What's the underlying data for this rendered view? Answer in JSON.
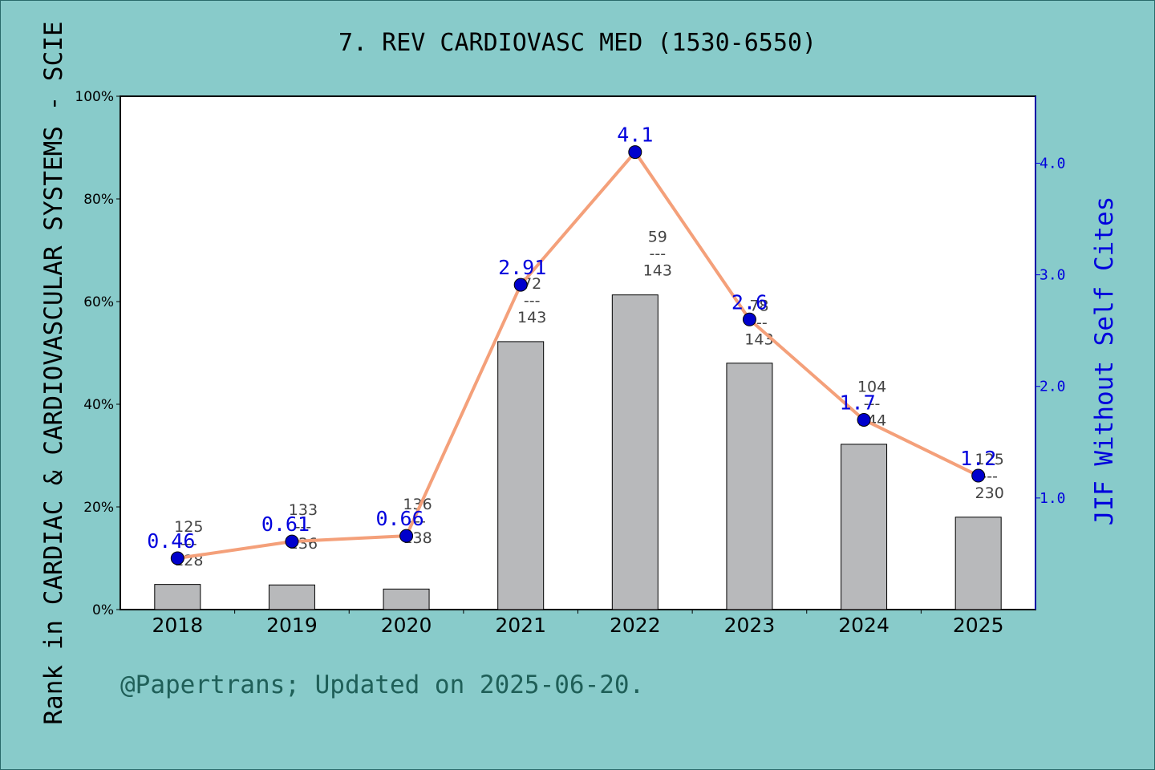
{
  "chart_data": {
    "type": "bar+line",
    "title": "7. REV CARDIOVASC MED (1530-6550)",
    "footer": "@Papertrans; Updated on 2025-06-20.",
    "ylabel_left": "Rank in CARDIAC & CARDIOVASCULAR SYSTEMS - SCIE",
    "ylabel_right": "JIF Without Self Cites",
    "categories": [
      "2018",
      "2019",
      "2020",
      "2021",
      "2022",
      "2023",
      "2024",
      "2025"
    ],
    "bar_values_percent": [
      4.9,
      4.8,
      4.0,
      52.2,
      61.3,
      48.0,
      32.2,
      18.0
    ],
    "rank_labels": [
      {
        "rank": "125",
        "sep": "---",
        "total": "128"
      },
      {
        "rank": "133",
        "sep": "---",
        "total": "136"
      },
      {
        "rank": "136",
        "sep": "---",
        "total": "138"
      },
      {
        "rank": "72",
        "sep": "---",
        "total": "143"
      },
      {
        "rank": "59",
        "sep": "---",
        "total": "143"
      },
      {
        "rank": "78",
        "sep": "---",
        "total": "143"
      },
      {
        "rank": "104",
        "sep": "---",
        "total": "144"
      },
      {
        "rank": "125",
        "sep": "---",
        "total": "230"
      }
    ],
    "line_values": [
      0.46,
      0.61,
      0.66,
      2.91,
      4.1,
      2.6,
      1.7,
      1.2
    ],
    "line_labels": [
      "0.46",
      "0.61",
      "0.66",
      "2.91",
      "4.1",
      "2.6",
      "1.7",
      "1.2"
    ],
    "ylim_left": [
      0,
      100
    ],
    "ylim_right": [
      0,
      4.6
    ],
    "left_ticks": [
      0,
      20,
      40,
      60,
      80,
      100
    ],
    "left_tick_labels": [
      "0%",
      "20%",
      "40%",
      "60%",
      "80%",
      "100%"
    ],
    "right_ticks": [
      1.0,
      2.0,
      3.0,
      4.0
    ],
    "right_tick_labels": [
      "1.0",
      "2.0",
      "3.0",
      "4.0"
    ],
    "grid": false,
    "colors": {
      "background": "#88cbca",
      "plot_bg": "#ffffff",
      "bar": "#b8b9bb",
      "line": "#f4a07a",
      "marker": "#0000cc",
      "line_label": "#0000dd",
      "rank_label": "#444444",
      "footer": "#1f5f58"
    }
  }
}
